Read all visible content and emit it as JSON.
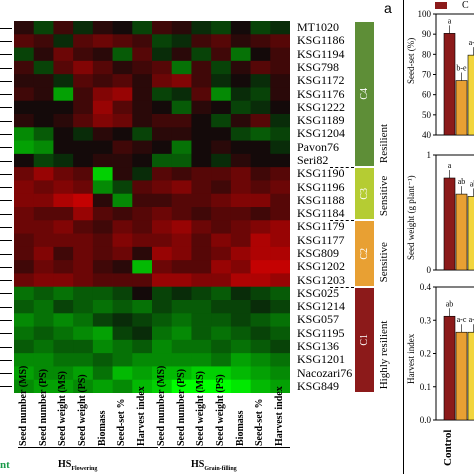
{
  "panel_letter": "a",
  "heatmap": {
    "rows": [
      "MT1020",
      "KSG1186",
      "KSG1194",
      "KSG798",
      "KSG1172",
      "KSG1176",
      "KSG1222",
      "KSG1189",
      "KSG1204",
      "Pavon76",
      "Seri82",
      "KSG1190",
      "KSG1196",
      "KSG1188",
      "KSG1184",
      "KSG1179",
      "KSG1177",
      "KSG809",
      "KSG1202",
      "KSG1203",
      "KSG025",
      "KSG1214",
      "KSG057",
      "KSG1195",
      "KSG136",
      "KSG1201",
      "Nacozari76",
      "KSG849"
    ],
    "columns": [
      "Seed number (MS)",
      "Seed number (PS)",
      "Seed weight (MS)",
      "Seed weight (PS)",
      "Biomass",
      "Seed-set %",
      "Harvest index",
      "Seed number (MS)",
      "Seed number (PS)",
      "Seed weight (MS)",
      "Seed weight (PS)",
      "Biomass",
      "Seed-set %",
      "Harvest index"
    ],
    "groups": [
      {
        "label": "HS",
        "sub": "Flowering"
      },
      {
        "label": "HS",
        "sub": "Grain-filling"
      }
    ],
    "values": [
      [
        0.1,
        -0.2,
        0.2,
        -0.1,
        0.1,
        0.0,
        -0.2,
        0.2,
        0.1,
        -0.1,
        -0.2,
        0.0,
        -0.2,
        -0.1
      ],
      [
        0.3,
        0.2,
        -0.1,
        0.3,
        0.4,
        0.3,
        0.2,
        -0.2,
        -0.1,
        0.2,
        0.3,
        0.1,
        0.2,
        0.3
      ],
      [
        -0.2,
        0.1,
        0.4,
        0.2,
        0.1,
        -0.3,
        0.3,
        -0.1,
        0.1,
        -0.2,
        0.2,
        -0.4,
        0.0,
        0.2
      ],
      [
        0.2,
        -0.2,
        0.3,
        0.5,
        0.3,
        0.1,
        0.2,
        0.3,
        -0.4,
        0.2,
        -0.2,
        0.1,
        0.3,
        0.2
      ],
      [
        0.1,
        0.1,
        -0.1,
        0.3,
        0.2,
        0.3,
        0.1,
        0.4,
        0.5,
        0.2,
        -0.1,
        0.0,
        -0.1,
        0.1
      ],
      [
        0.2,
        0.1,
        -0.6,
        0.2,
        0.5,
        0.6,
        0.1,
        -0.2,
        -0.1,
        0.3,
        -0.5,
        -0.1,
        -0.2,
        0.1
      ],
      [
        0.0,
        0.0,
        0.0,
        0.2,
        0.6,
        0.3,
        0.1,
        0.0,
        -0.3,
        0.1,
        0.0,
        -0.2,
        -0.1,
        0.0
      ],
      [
        0.1,
        0.0,
        0.1,
        0.3,
        0.5,
        0.4,
        0.1,
        0.2,
        0.2,
        0.0,
        -0.2,
        0.1,
        0.3,
        -0.1
      ],
      [
        -0.5,
        -0.3,
        0.0,
        -0.1,
        0.1,
        0.0,
        -0.2,
        0.1,
        0.1,
        0.0,
        0.0,
        -0.2,
        -0.3,
        -0.2
      ],
      [
        -0.6,
        -0.5,
        0.0,
        0.0,
        0.0,
        0.2,
        0.1,
        0.0,
        -0.4,
        0.0,
        0.1,
        0.0,
        0.0,
        -0.1
      ],
      [
        0.0,
        -0.2,
        -0.1,
        0.0,
        0.1,
        0.1,
        0.0,
        -0.3,
        -0.3,
        0.0,
        -0.1,
        0.1,
        0.0,
        0.0
      ],
      [
        0.4,
        0.6,
        0.4,
        0.3,
        -0.8,
        0.1,
        -0.1,
        0.3,
        0.2,
        0.3,
        0.3,
        0.4,
        0.2,
        0.3
      ],
      [
        0.5,
        0.4,
        0.5,
        0.4,
        -0.5,
        -0.2,
        0.3,
        0.4,
        0.5,
        0.3,
        0.2,
        0.4,
        0.3,
        0.4
      ],
      [
        0.5,
        0.5,
        0.7,
        0.8,
        0.1,
        -0.5,
        0.2,
        0.2,
        0.3,
        0.3,
        0.4,
        0.5,
        0.5,
        0.3
      ],
      [
        0.4,
        0.3,
        0.3,
        0.6,
        0.3,
        0.2,
        0.3,
        0.4,
        0.3,
        0.2,
        0.3,
        0.3,
        0.2,
        0.3
      ],
      [
        0.4,
        0.4,
        0.5,
        0.3,
        0.2,
        0.4,
        0.3,
        0.5,
        0.6,
        0.4,
        0.3,
        0.4,
        0.5,
        0.6
      ],
      [
        0.3,
        0.4,
        0.4,
        0.4,
        0.3,
        0.5,
        0.4,
        0.4,
        0.5,
        0.3,
        0.5,
        0.4,
        0.7,
        0.6
      ],
      [
        0.3,
        0.5,
        0.2,
        0.4,
        0.3,
        0.4,
        0.1,
        0.6,
        0.5,
        0.3,
        0.4,
        0.6,
        0.7,
        0.7
      ],
      [
        0.2,
        0.4,
        0.3,
        0.4,
        0.2,
        0.1,
        -0.7,
        0.4,
        0.3,
        0.3,
        0.6,
        0.5,
        0.8,
        0.8
      ],
      [
        0.4,
        0.5,
        0.5,
        0.4,
        0.3,
        0.3,
        0.3,
        0.6,
        0.6,
        0.5,
        0.5,
        0.7,
        0.7,
        0.6
      ],
      [
        -0.4,
        -0.3,
        -0.4,
        -0.3,
        -0.3,
        -0.2,
        0.0,
        -0.2,
        -0.1,
        -0.2,
        -0.3,
        -0.1,
        -0.2,
        -0.3
      ],
      [
        -0.3,
        -0.4,
        -0.2,
        -0.3,
        -0.4,
        -0.3,
        -0.4,
        -0.2,
        -0.3,
        -0.3,
        -0.2,
        -0.2,
        -0.1,
        -0.2
      ],
      [
        -0.5,
        -0.4,
        -0.5,
        -0.4,
        -0.2,
        -0.1,
        -0.2,
        -0.3,
        -0.4,
        -0.3,
        -0.3,
        -0.2,
        -0.3,
        -0.4
      ],
      [
        -0.4,
        -0.3,
        -0.4,
        -0.5,
        -0.6,
        -0.2,
        -0.1,
        -0.4,
        -0.5,
        -0.3,
        -0.4,
        -0.3,
        -0.2,
        -0.3
      ],
      [
        -0.3,
        -0.4,
        -0.3,
        -0.3,
        -0.5,
        -0.4,
        -0.3,
        -0.5,
        -0.4,
        -0.4,
        -0.3,
        -0.4,
        -0.3,
        -0.2
      ],
      [
        -0.5,
        -0.5,
        -0.4,
        -0.4,
        -0.3,
        -0.4,
        -0.5,
        -0.5,
        -0.5,
        -0.5,
        -0.4,
        -0.6,
        -0.5,
        -0.4
      ],
      [
        -0.6,
        -0.5,
        -0.5,
        -0.6,
        -0.4,
        -0.7,
        -0.6,
        -0.7,
        -0.7,
        -0.8,
        -0.8,
        -0.7,
        -0.6,
        -0.5
      ],
      [
        -0.5,
        -0.6,
        -0.6,
        -0.5,
        -0.6,
        -0.5,
        -0.7,
        -0.8,
        -1.0,
        -1.0,
        -1.0,
        -0.9,
        -0.7,
        -0.6
      ]
    ]
  },
  "clusters": [
    {
      "name": "C4",
      "class": "Resilient",
      "color": "#5e8e37"
    },
    {
      "name": "C3",
      "class": "Sensitive",
      "color": "#b5cc33"
    },
    {
      "name": "C2",
      "class": "Sensitive",
      "color": "#e8a033"
    },
    {
      "name": "C1",
      "class": "Highly resilient",
      "color": "#8c1a1a"
    }
  ],
  "side_panels": {
    "legend_letter": "C",
    "ylabels": [
      "Seed-set (%)",
      "Seed weight (g plant⁻¹)",
      "Harvest index"
    ],
    "ticks1": [
      "100",
      "90",
      "80",
      "70",
      "60",
      "50",
      "40"
    ],
    "ticks2": [
      "1",
      "0"
    ],
    "ticks3": [
      "0.4",
      "0.3",
      "0.2",
      "0.1",
      "0.0"
    ],
    "letters1": [
      "a",
      "b-e",
      "a-c"
    ],
    "letters2": [
      "a",
      "ab",
      "ab"
    ],
    "letters3": [
      "ab",
      "a-c",
      "a-c"
    ],
    "xcat": "Control",
    "bar_colors": [
      "#8b1a1a",
      "#e8a033",
      "#f2d53c"
    ]
  },
  "bottom_fragment": "nt"
}
